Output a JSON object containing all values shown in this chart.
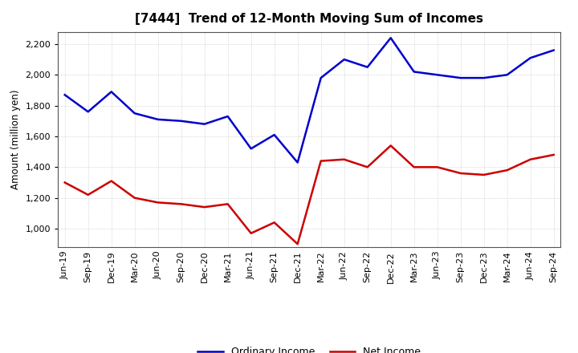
{
  "title": "[7444]  Trend of 12-Month Moving Sum of Incomes",
  "ylabel": "Amount (million yen)",
  "x_labels": [
    "Jun-19",
    "Sep-19",
    "Dec-19",
    "Mar-20",
    "Jun-20",
    "Sep-20",
    "Dec-20",
    "Mar-21",
    "Jun-21",
    "Sep-21",
    "Dec-21",
    "Mar-22",
    "Jun-22",
    "Sep-22",
    "Dec-22",
    "Mar-23",
    "Jun-23",
    "Sep-23",
    "Dec-23",
    "Mar-24",
    "Jun-24",
    "Sep-24"
  ],
  "ordinary_income": [
    1870,
    1760,
    1890,
    1750,
    1710,
    1700,
    1680,
    1730,
    1520,
    1610,
    1430,
    1980,
    2100,
    2050,
    2240,
    2020,
    2000,
    1980,
    1980,
    2000,
    2110,
    2160
  ],
  "net_income": [
    1300,
    1220,
    1310,
    1200,
    1170,
    1160,
    1140,
    1160,
    970,
    1040,
    900,
    1440,
    1450,
    1400,
    1540,
    1400,
    1400,
    1360,
    1350,
    1380,
    1450,
    1480
  ],
  "ordinary_color": "#0000cc",
  "net_color": "#cc0000",
  "ylim_min": 880,
  "ylim_max": 2280,
  "yticks": [
    1000,
    1200,
    1400,
    1600,
    1800,
    2000,
    2200
  ],
  "background_color": "#ffffff",
  "grid_color": "#bbbbbb",
  "title_fontsize": 11,
  "axis_fontsize": 8,
  "ylabel_fontsize": 8.5
}
